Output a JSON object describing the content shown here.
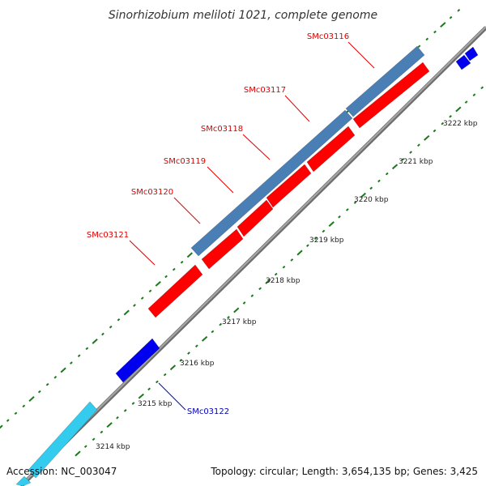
{
  "title": "Sinorhizobium meliloti 1021, complete genome",
  "footer": {
    "accession": "Accession: NC_003047",
    "summary": "Topology: circular; Length: 3,654,135 bp; Genes: 3,425"
  },
  "colors": {
    "backbone": "#8f8f8f",
    "backbone_dark": "#6e6e6e",
    "tick_green": "#1a7a1a",
    "gene_steelblue": "#4a7fb5",
    "gene_red": "#ff0000",
    "gene_blue": "#0000ee",
    "gene_cyan": "#33ccee",
    "label_red": "#dd0000",
    "label_blue": "#0000bb"
  },
  "scale_labels": [
    "3222 kbp",
    "3221 kbp",
    "3220 kbp",
    "3219 kbp",
    "3218 kbp",
    "3217 kbp",
    "3216 kbp",
    "3215 kbp",
    "3214 kbp"
  ],
  "genes_labeled": [
    {
      "name": "SMc03116",
      "color": "red"
    },
    {
      "name": "SMc03117",
      "color": "red"
    },
    {
      "name": "SMc03118",
      "color": "red"
    },
    {
      "name": "SMc03119",
      "color": "red"
    },
    {
      "name": "SMc03120",
      "color": "red"
    },
    {
      "name": "SMc03121",
      "color": "red"
    },
    {
      "name": "SMc03122",
      "color": "blue"
    }
  ]
}
